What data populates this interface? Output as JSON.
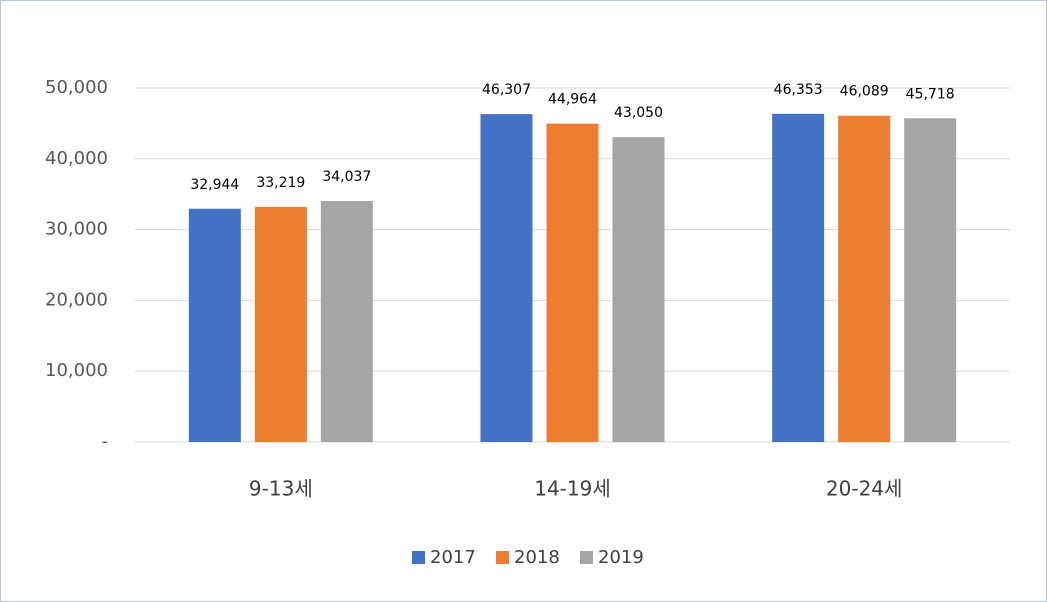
{
  "chart_data": {
    "type": "bar",
    "categories": [
      "9-13세",
      "14-19세",
      "20-24세"
    ],
    "series": [
      {
        "name": "2017",
        "color": "#4472c4",
        "values": [
          32944,
          46307,
          46353
        ],
        "value_labels": [
          "32,944",
          "46,307",
          "46,353"
        ]
      },
      {
        "name": "2018",
        "color": "#ed7d31",
        "values": [
          33219,
          44964,
          46089
        ],
        "value_labels": [
          "33,219",
          "44,964",
          "46,089"
        ]
      },
      {
        "name": "2019",
        "color": "#a5a5a5",
        "values": [
          34037,
          43050,
          45718
        ],
        "value_labels": [
          "34,037",
          "43,050",
          "45,718"
        ]
      }
    ],
    "ylim": [
      0,
      50000
    ],
    "yticks": [
      {
        "value": 0,
        "label": "-"
      },
      {
        "value": 10000,
        "label": "10,000"
      },
      {
        "value": 20000,
        "label": "20,000"
      },
      {
        "value": 30000,
        "label": "30,000"
      },
      {
        "value": 40000,
        "label": "40,000"
      },
      {
        "value": 50000,
        "label": "50,000"
      }
    ],
    "grid": true,
    "legend": "bottom"
  }
}
